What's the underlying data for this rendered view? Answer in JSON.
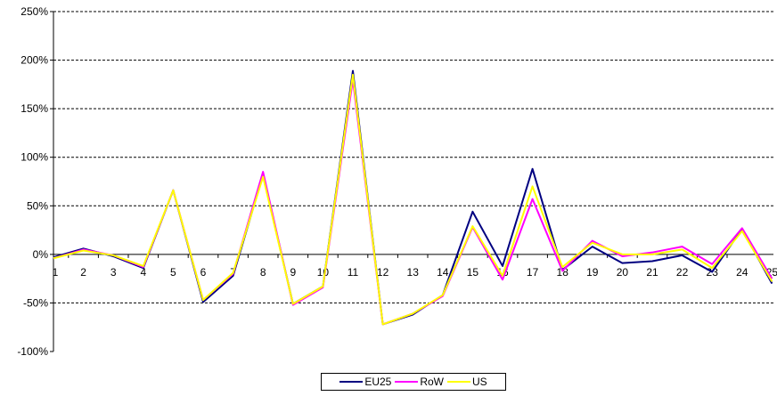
{
  "chart_data": {
    "type": "line",
    "x": [
      "1",
      "2",
      "3",
      "4",
      "5",
      "6",
      "7",
      "8",
      "9",
      "10",
      "11",
      "12",
      "13",
      "14",
      "15",
      "16",
      "17",
      "18",
      "19",
      "20",
      "21",
      "22",
      "23",
      "24",
      "25"
    ],
    "ylim": [
      -100,
      250
    ],
    "yticks": [
      -100,
      -50,
      0,
      50,
      100,
      150,
      200,
      250
    ],
    "ytick_labels": [
      "-100%",
      "-50%",
      "0%",
      "50%",
      "100%",
      "150%",
      "200%",
      "250%"
    ],
    "grid": "horizontal-dashed",
    "legend_position": "bottom",
    "series": [
      {
        "name": "EU25",
        "color": "#000080",
        "values": [
          -3,
          6,
          -2,
          -14,
          66,
          -49,
          -22,
          82,
          -51,
          -33,
          189,
          -72,
          -62,
          -42,
          44,
          -12,
          88,
          -16,
          8,
          -9,
          -7,
          -1,
          -18,
          26,
          -30
        ]
      },
      {
        "name": "RoW",
        "color": "#ff00ff",
        "values": [
          -4,
          5,
          -1,
          -13,
          66,
          -47,
          -20,
          85,
          -52,
          -34,
          180,
          -72,
          -61,
          -43,
          28,
          -26,
          57,
          -17,
          14,
          -2,
          2,
          8,
          -10,
          27,
          -25
        ]
      },
      {
        "name": "US",
        "color": "#ffff00",
        "values": [
          -4,
          4,
          -1,
          -12,
          66,
          -47,
          -19,
          80,
          -51,
          -33,
          185,
          -72,
          -61,
          -42,
          29,
          -22,
          70,
          -13,
          12,
          0,
          0,
          5,
          -14,
          24,
          -28
        ]
      }
    ]
  }
}
